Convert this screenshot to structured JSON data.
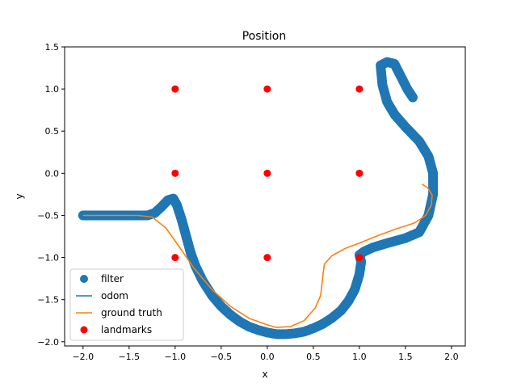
{
  "chart_data": {
    "type": "scatter",
    "title": "Position",
    "xlabel": "x",
    "ylabel": "y",
    "xlim": [
      -2.2,
      2.15
    ],
    "ylim": [
      -2.05,
      1.5
    ],
    "xticks": [
      -2.0,
      -1.5,
      -1.0,
      -0.5,
      0.0,
      0.5,
      1.0,
      1.5,
      2.0
    ],
    "xtick_labels": [
      "−2.0",
      "−1.5",
      "−1.0",
      "−0.5",
      "0.0",
      "0.5",
      "1.0",
      "1.5",
      "2.0"
    ],
    "yticks": [
      -2.0,
      -1.5,
      -1.0,
      -0.5,
      0.0,
      0.5,
      1.0,
      1.5
    ],
    "ytick_labels": [
      "−2.0",
      "−1.5",
      "−1.0",
      "−0.5",
      "0.0",
      "0.5",
      "1.0",
      "1.5"
    ],
    "grid": false,
    "legend_position": "lower-left",
    "colors": {
      "filter": "#1f77b4",
      "odom": "#1f77b4",
      "ground_truth": "#ff7f0e",
      "landmarks": "#ff0000"
    },
    "series": [
      {
        "name": "filter",
        "kind": "scatter",
        "points": [
          [
            -2.0,
            -0.5
          ],
          [
            -1.9,
            -0.5
          ],
          [
            -1.8,
            -0.5
          ],
          [
            -1.7,
            -0.5
          ],
          [
            -1.6,
            -0.5
          ],
          [
            -1.5,
            -0.5
          ],
          [
            -1.4,
            -0.5
          ],
          [
            -1.3,
            -0.5
          ],
          [
            -1.22,
            -0.47
          ],
          [
            -1.15,
            -0.4
          ],
          [
            -1.08,
            -0.32
          ],
          [
            -1.02,
            -0.3
          ],
          [
            -0.98,
            -0.38
          ],
          [
            -0.93,
            -0.55
          ],
          [
            -0.88,
            -0.75
          ],
          [
            -0.83,
            -0.95
          ],
          [
            -0.78,
            -1.1
          ],
          [
            -0.7,
            -1.28
          ],
          [
            -0.6,
            -1.45
          ],
          [
            -0.5,
            -1.58
          ],
          [
            -0.4,
            -1.68
          ],
          [
            -0.3,
            -1.76
          ],
          [
            -0.2,
            -1.82
          ],
          [
            -0.1,
            -1.86
          ],
          [
            0.0,
            -1.89
          ],
          [
            0.1,
            -1.91
          ],
          [
            0.2,
            -1.91
          ],
          [
            0.3,
            -1.9
          ],
          [
            0.4,
            -1.88
          ],
          [
            0.5,
            -1.84
          ],
          [
            0.6,
            -1.79
          ],
          [
            0.7,
            -1.72
          ],
          [
            0.8,
            -1.63
          ],
          [
            0.88,
            -1.52
          ],
          [
            0.95,
            -1.38
          ],
          [
            1.0,
            -1.2
          ],
          [
            1.02,
            -1.05
          ],
          [
            1.0,
            -0.97
          ],
          [
            1.05,
            -0.93
          ],
          [
            1.15,
            -0.88
          ],
          [
            1.3,
            -0.83
          ],
          [
            1.5,
            -0.77
          ],
          [
            1.65,
            -0.7
          ],
          [
            1.75,
            -0.5
          ],
          [
            1.8,
            -0.25
          ],
          [
            1.8,
            0.0
          ],
          [
            1.75,
            0.2
          ],
          [
            1.65,
            0.38
          ],
          [
            1.5,
            0.55
          ],
          [
            1.38,
            0.7
          ],
          [
            1.3,
            0.85
          ],
          [
            1.25,
            1.05
          ],
          [
            1.23,
            1.28
          ],
          [
            1.3,
            1.32
          ],
          [
            1.38,
            1.3
          ],
          [
            1.45,
            1.15
          ],
          [
            1.52,
            1.0
          ],
          [
            1.58,
            0.9
          ]
        ]
      },
      {
        "name": "odom",
        "kind": "line",
        "points": []
      },
      {
        "name": "ground truth",
        "kind": "line",
        "points": [
          [
            -2.0,
            -0.5
          ],
          [
            -1.8,
            -0.5
          ],
          [
            -1.6,
            -0.5
          ],
          [
            -1.4,
            -0.5
          ],
          [
            -1.25,
            -0.52
          ],
          [
            -1.1,
            -0.65
          ],
          [
            -0.95,
            -0.88
          ],
          [
            -0.8,
            -1.12
          ],
          [
            -0.6,
            -1.38
          ],
          [
            -0.4,
            -1.58
          ],
          [
            -0.2,
            -1.72
          ],
          [
            0.0,
            -1.8
          ],
          [
            0.1,
            -1.83
          ],
          [
            0.25,
            -1.82
          ],
          [
            0.4,
            -1.75
          ],
          [
            0.52,
            -1.6
          ],
          [
            0.58,
            -1.45
          ],
          [
            0.6,
            -1.25
          ],
          [
            0.62,
            -1.08
          ],
          [
            0.7,
            -0.98
          ],
          [
            0.85,
            -0.89
          ],
          [
            1.0,
            -0.83
          ],
          [
            1.2,
            -0.74
          ],
          [
            1.4,
            -0.66
          ],
          [
            1.6,
            -0.59
          ],
          [
            1.72,
            -0.5
          ],
          [
            1.78,
            -0.38
          ],
          [
            1.79,
            -0.26
          ],
          [
            1.74,
            -0.17
          ],
          [
            1.68,
            -0.13
          ]
        ]
      },
      {
        "name": "landmarks",
        "kind": "scatter",
        "points": [
          [
            -1.0,
            1.0
          ],
          [
            0.0,
            1.0
          ],
          [
            1.0,
            1.0
          ],
          [
            -1.0,
            0.0
          ],
          [
            0.0,
            0.0
          ],
          [
            1.0,
            0.0
          ],
          [
            -1.0,
            -1.0
          ],
          [
            0.0,
            -1.0
          ],
          [
            1.0,
            -1.0
          ]
        ]
      }
    ]
  }
}
